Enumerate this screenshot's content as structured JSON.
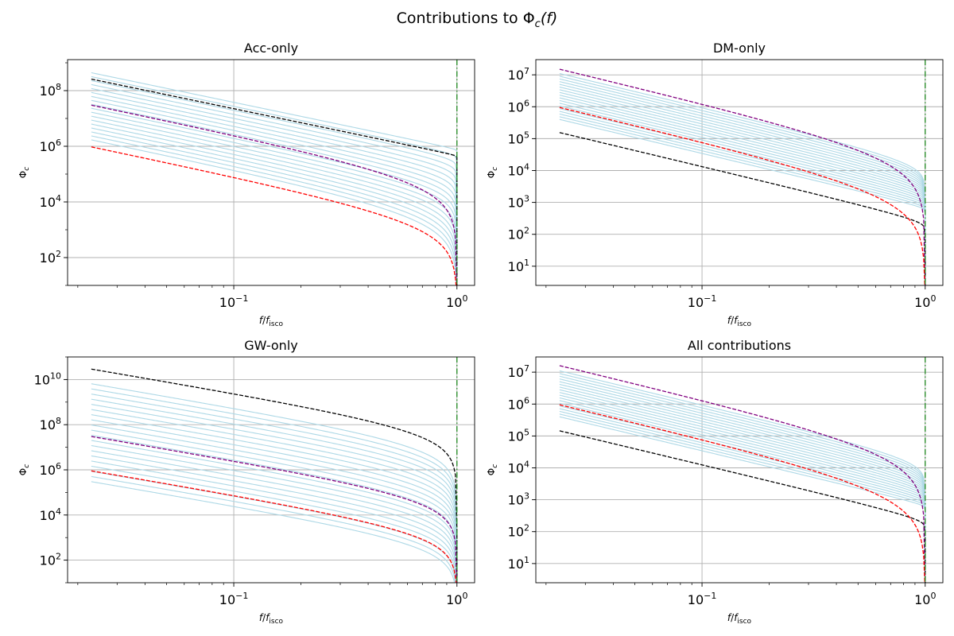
{
  "figure": {
    "title": "Contributions to Φc(f)",
    "title_main": "Contributions to ",
    "title_sym": "Φ",
    "title_sub": "c",
    "title_arg": "(f)"
  },
  "colors": {
    "family": "#add8e6",
    "black": "#000000",
    "purple": "#800080",
    "red": "#ff0000",
    "isco": "#228b22",
    "grid": "#b0b0b0"
  },
  "chart_data": [
    {
      "type": "line",
      "title": "Acc-only",
      "xlabel": "f/f_isco",
      "ylabel": "Φ_c",
      "xscale": "log",
      "yscale": "log",
      "xlim": [
        0.018,
        1.2
      ],
      "ylim": [
        10,
        1300000000.0
      ],
      "xticks": [
        {
          "value": 0.1,
          "base": "10",
          "exp": "−1"
        },
        {
          "value": 1,
          "base": "10",
          "exp": "0"
        }
      ],
      "yticks": [
        {
          "value": 100,
          "base": "10",
          "exp": "2"
        },
        {
          "value": 10000,
          "base": "10",
          "exp": "4"
        },
        {
          "value": 1000000,
          "base": "10",
          "exp": "6"
        },
        {
          "value": 100000000,
          "base": "10",
          "exp": "8"
        }
      ],
      "grid": true,
      "x_start": 0.023,
      "isco_line_x": 1.0,
      "family": {
        "count": 18,
        "alpha_top": 0.025,
        "alpha_bottom": 1.1,
        "y0_top": 440000000.0,
        "y0_bottom": 1700000.0
      },
      "series": [
        {
          "style": "black-dashed",
          "y0": 260000000.0,
          "alpha": 0.02
        },
        {
          "style": "purple-dashed",
          "y0": 30000000.0,
          "alpha": 1.12
        },
        {
          "style": "red-dashed",
          "y0": 950000.0,
          "alpha": 1.12
        }
      ]
    },
    {
      "type": "line",
      "title": "DM-only",
      "xlabel": "f/f_isco",
      "ylabel": "Φ_c",
      "xscale": "log",
      "yscale": "log",
      "xlim": [
        0.018,
        1.2
      ],
      "ylim": [
        2.5,
        30000000.0
      ],
      "xticks": [
        {
          "value": 0.1,
          "base": "10",
          "exp": "−1"
        },
        {
          "value": 1,
          "base": "10",
          "exp": "0"
        }
      ],
      "yticks": [
        {
          "value": 10,
          "base": "10",
          "exp": "1"
        },
        {
          "value": 100,
          "base": "10",
          "exp": "2"
        },
        {
          "value": 1000,
          "base": "10",
          "exp": "3"
        },
        {
          "value": 10000,
          "base": "10",
          "exp": "4"
        },
        {
          "value": 100000,
          "base": "10",
          "exp": "5"
        },
        {
          "value": 1000000,
          "base": "10",
          "exp": "6"
        },
        {
          "value": 10000000,
          "base": "10",
          "exp": "7"
        }
      ],
      "grid": true,
      "x_start": 0.023,
      "isco_line_x": 1.0,
      "family": {
        "count": 18,
        "alpha_top": 0.35,
        "alpha_bottom": 0.05,
        "y0_top": 11000000.0,
        "y0_bottom": 400000.0
      },
      "series": [
        {
          "style": "black-dashed",
          "y0": 155000.0,
          "alpha": 0.12
        },
        {
          "style": "purple-dashed",
          "y0": 15000000.0,
          "alpha": 1.1
        },
        {
          "style": "red-dashed",
          "y0": 950000.0,
          "alpha": 1.12
        }
      ]
    },
    {
      "type": "line",
      "title": "GW-only",
      "xlabel": "f/f_isco",
      "ylabel": "Φ_c",
      "xscale": "log",
      "yscale": "log",
      "xlim": [
        0.018,
        1.2
      ],
      "ylim": [
        10,
        100000000000.0
      ],
      "xticks": [
        {
          "value": 0.1,
          "base": "10",
          "exp": "−1"
        },
        {
          "value": 1,
          "base": "10",
          "exp": "0"
        }
      ],
      "yticks": [
        {
          "value": 100,
          "base": "10",
          "exp": "2"
        },
        {
          "value": 10000,
          "base": "10",
          "exp": "4"
        },
        {
          "value": 1000000,
          "base": "10",
          "exp": "6"
        },
        {
          "value": 100000000,
          "base": "10",
          "exp": "8"
        },
        {
          "value": 10000000000,
          "base": "10",
          "exp": "10"
        }
      ],
      "grid": true,
      "x_start": 0.023,
      "isco_line_x": 1.0,
      "family": {
        "count": 20,
        "alpha_top": 1.1,
        "alpha_bottom": 1.1,
        "y0_top": 6500000000.0,
        "y0_bottom": 300000.0
      },
      "series": [
        {
          "style": "black-dashed",
          "y0": 29000000000.0,
          "alpha": 1.1
        },
        {
          "style": "purple-dashed",
          "y0": 30000000.0,
          "alpha": 1.1
        },
        {
          "style": "red-dashed",
          "y0": 900000.0,
          "alpha": 1.1
        }
      ]
    },
    {
      "type": "line",
      "title": "All contributions",
      "xlabel": "f/f_isco",
      "ylabel": "Φ_c",
      "xscale": "log",
      "yscale": "log",
      "xlim": [
        0.018,
        1.2
      ],
      "ylim": [
        2.5,
        30000000.0
      ],
      "xticks": [
        {
          "value": 0.1,
          "base": "10",
          "exp": "−1"
        },
        {
          "value": 1,
          "base": "10",
          "exp": "0"
        }
      ],
      "yticks": [
        {
          "value": 10,
          "base": "10",
          "exp": "1"
        },
        {
          "value": 100,
          "base": "10",
          "exp": "2"
        },
        {
          "value": 1000,
          "base": "10",
          "exp": "3"
        },
        {
          "value": 10000,
          "base": "10",
          "exp": "4"
        },
        {
          "value": 100000,
          "base": "10",
          "exp": "5"
        },
        {
          "value": 1000000,
          "base": "10",
          "exp": "6"
        },
        {
          "value": 10000000,
          "base": "10",
          "exp": "7"
        }
      ],
      "grid": true,
      "x_start": 0.023,
      "isco_line_x": 1.0,
      "family": {
        "count": 18,
        "alpha_top": 0.35,
        "alpha_bottom": 0.05,
        "y0_top": 11000000.0,
        "y0_bottom": 400000.0
      },
      "series": [
        {
          "style": "black-dashed",
          "y0": 145000.0,
          "alpha": 0.12
        },
        {
          "style": "purple-dashed",
          "y0": 16000000.0,
          "alpha": 1.1
        },
        {
          "style": "red-dashed",
          "y0": 950000.0,
          "alpha": 1.12
        }
      ]
    }
  ]
}
